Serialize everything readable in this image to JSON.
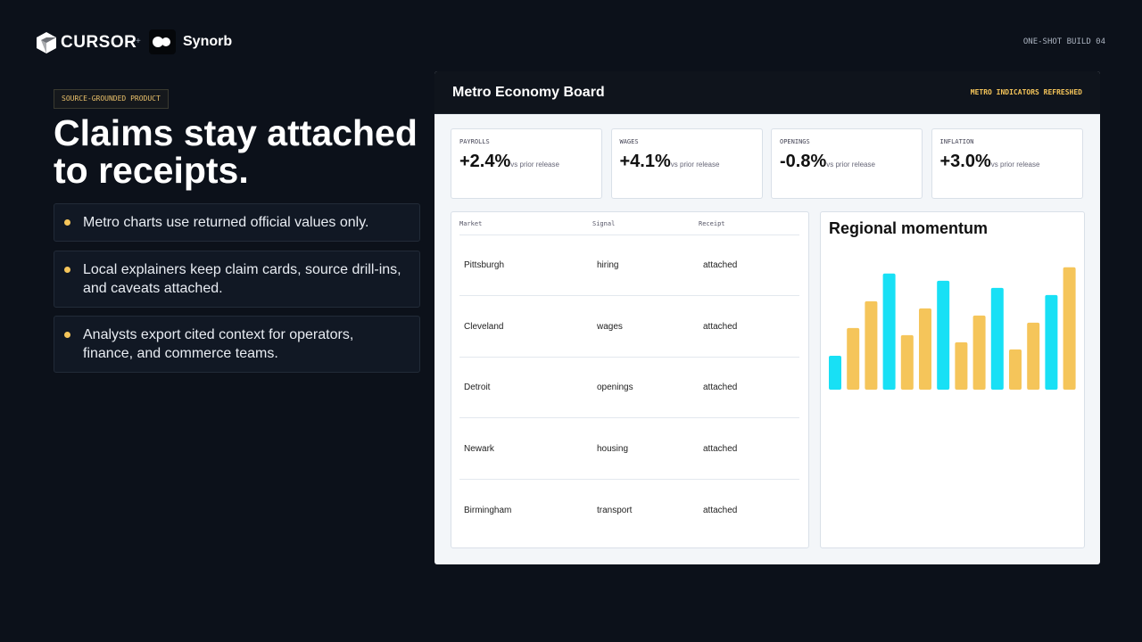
{
  "header": {
    "brand": "CURSOR",
    "plus": "+",
    "partner": "Synorb",
    "build": "ONE-SHOT BUILD 04"
  },
  "hero": {
    "badge": "SOURCE-GROUNDED PRODUCT",
    "title_lines": [
      "Claims stay attached",
      "to receipts."
    ],
    "bullets": [
      "Metro charts use returned official values only.",
      "Local explainers keep claim cards, source drill-ins, and caveats attached.",
      "Analysts export cited context for operators, finance, and commerce teams."
    ]
  },
  "panel": {
    "title": "Metro Economy Board",
    "status": "METRO INDICATORS REFRESHED",
    "kpis": [
      {
        "label": "PAYROLLS",
        "value": "+2.4%",
        "note": "vs prior release"
      },
      {
        "label": "WAGES",
        "value": "+4.1%",
        "note": "vs prior release"
      },
      {
        "label": "OPENINGS",
        "value": "-0.8%",
        "note": "vs prior release"
      },
      {
        "label": "INFLATION",
        "value": "+3.0%",
        "note": "vs prior release"
      }
    ],
    "table": {
      "columns": [
        "Market",
        "Signal",
        "Receipt"
      ],
      "rows": [
        [
          "Pittsburgh",
          "hiring",
          "attached"
        ],
        [
          "Cleveland",
          "wages",
          "attached"
        ],
        [
          "Detroit",
          "openings",
          "attached"
        ],
        [
          "Newark",
          "housing",
          "attached"
        ],
        [
          "Birmingham",
          "transport",
          "attached"
        ]
      ]
    },
    "chart": {
      "type": "bar",
      "title": "Regional momentum",
      "values": [
        38,
        69,
        99,
        130,
        61,
        91,
        122,
        53,
        83,
        114,
        45,
        75,
        106,
        137
      ],
      "colors": [
        "#18e0f5",
        "#f5c55a",
        "#f5c55a",
        "#18e0f5",
        "#f5c55a",
        "#f5c55a",
        "#18e0f5",
        "#f5c55a",
        "#f5c55a",
        "#18e0f5",
        "#f5c55a",
        "#f5c55a",
        "#18e0f5",
        "#f5c55a"
      ]
    }
  }
}
